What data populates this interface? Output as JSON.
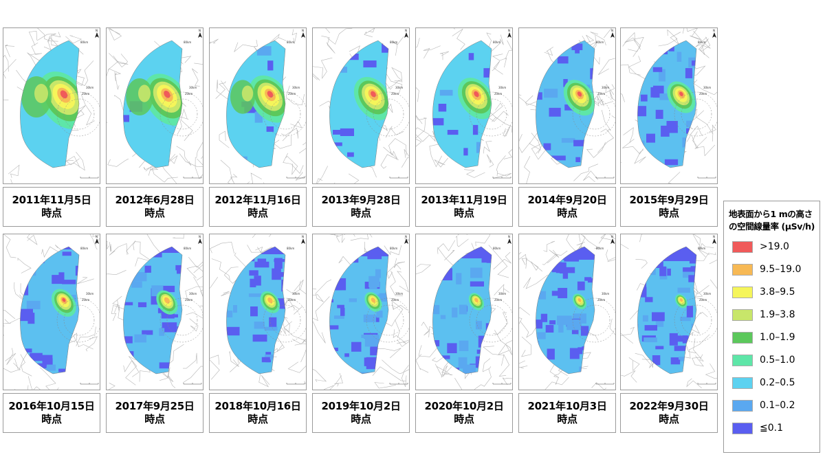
{
  "maps": [
    {
      "date": "2011年11月5日",
      "suffix": "時点",
      "level": 1.0
    },
    {
      "date": "2012年6月28日",
      "suffix": "時点",
      "level": 0.9
    },
    {
      "date": "2012年11月16日",
      "suffix": "時点",
      "level": 0.82
    },
    {
      "date": "2013年9月28日",
      "suffix": "時点",
      "level": 0.75
    },
    {
      "date": "2013年11月19日",
      "suffix": "時点",
      "level": 0.72
    },
    {
      "date": "2014年9月20日",
      "suffix": "時点",
      "level": 0.62
    },
    {
      "date": "2015年9月29日",
      "suffix": "時点",
      "level": 0.55
    },
    {
      "date": "2016年10月15日",
      "suffix": "時点",
      "level": 0.48
    },
    {
      "date": "2017年9月25日",
      "suffix": "時点",
      "level": 0.42
    },
    {
      "date": "2018年10月16日",
      "suffix": "時点",
      "level": 0.38
    },
    {
      "date": "2019年10月2日",
      "suffix": "時点",
      "level": 0.34
    },
    {
      "date": "2020年10月2日",
      "suffix": "時点",
      "level": 0.3
    },
    {
      "date": "2021年10月3日",
      "suffix": "時点",
      "level": 0.27
    },
    {
      "date": "2022年9月30日",
      "suffix": "時点",
      "level": 0.24
    }
  ],
  "map_labels": {
    "ring80": "80km",
    "ring30": "30km",
    "ring20": "20km",
    "north": "N"
  },
  "legend": {
    "title_line1": "地表面から1 mの高さ",
    "title_line2": "の空間線量率 (μSv/h)",
    "items": [
      {
        "label": ">19.0",
        "color": "#f05a5a"
      },
      {
        "label": "9.5–19.0",
        "color": "#f7b955"
      },
      {
        "label": "3.8–9.5",
        "color": "#f5f55a"
      },
      {
        "label": "1.9–3.8",
        "color": "#c8e66a"
      },
      {
        "label": "1.0–1.9",
        "color": "#5cc85c"
      },
      {
        "label": "0.5–1.0",
        "color": "#5ee6a8"
      },
      {
        "label": "0.2–0.5",
        "color": "#5cd2f0"
      },
      {
        "label": "0.1–0.2",
        "color": "#5aa8f0"
      },
      {
        "label": "≦0.1",
        "color": "#5a5ef0"
      }
    ]
  }
}
